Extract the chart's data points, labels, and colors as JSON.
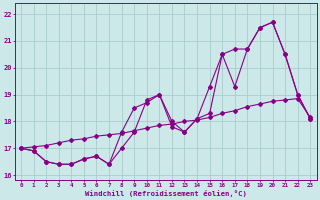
{
  "xlabel": "Windchill (Refroidissement éolien,°C)",
  "bg_color": "#cce8e8",
  "grid_color": "#aacccc",
  "line_color": "#880088",
  "x_data": [
    0,
    1,
    2,
    3,
    4,
    5,
    6,
    7,
    8,
    9,
    10,
    11,
    12,
    13,
    14,
    15,
    16,
    17,
    18,
    19,
    20,
    21,
    22,
    23
  ],
  "line1": [
    17.0,
    16.9,
    16.5,
    16.4,
    16.4,
    16.6,
    16.7,
    16.4,
    17.0,
    17.6,
    18.8,
    19.0,
    17.8,
    17.6,
    18.1,
    19.3,
    20.5,
    20.7,
    20.7,
    21.5,
    21.7,
    20.5,
    19.0,
    18.1
  ],
  "line2": [
    17.0,
    16.9,
    16.5,
    16.4,
    16.4,
    16.6,
    16.7,
    16.4,
    17.6,
    18.5,
    18.7,
    19.0,
    18.0,
    17.6,
    18.1,
    18.3,
    20.5,
    19.3,
    20.7,
    21.5,
    21.7,
    20.5,
    19.0,
    18.1
  ],
  "line3": [
    17.0,
    17.05,
    17.1,
    17.2,
    17.3,
    17.35,
    17.45,
    17.5,
    17.55,
    17.65,
    17.75,
    17.85,
    17.9,
    18.0,
    18.05,
    18.15,
    18.3,
    18.4,
    18.55,
    18.65,
    18.75,
    18.8,
    18.85,
    18.15
  ],
  "ylim": [
    15.8,
    22.4
  ],
  "xlim": [
    -0.5,
    23.5
  ],
  "yticks": [
    16,
    17,
    18,
    19,
    20,
    21,
    22
  ],
  "xticks": [
    0,
    1,
    2,
    3,
    4,
    5,
    6,
    7,
    8,
    9,
    10,
    11,
    12,
    13,
    14,
    15,
    16,
    17,
    18,
    19,
    20,
    21,
    22,
    23
  ]
}
